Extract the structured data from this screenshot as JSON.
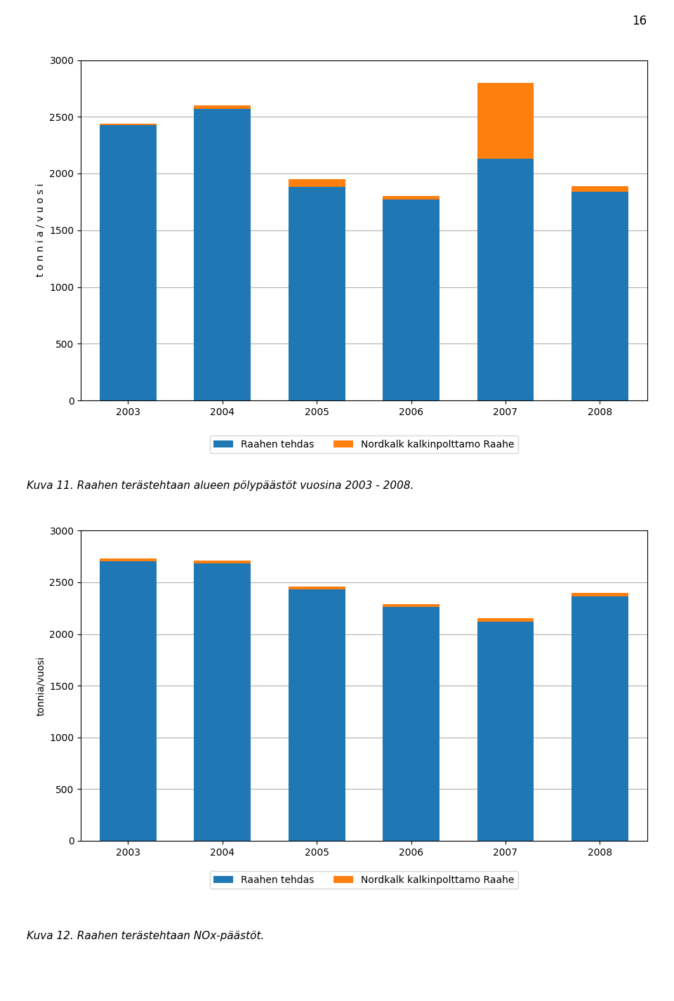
{
  "chart_data": [
    {
      "type": "bar",
      "stacked": true,
      "categories": [
        "2003",
        "2004",
        "2005",
        "2006",
        "2007",
        "2008"
      ],
      "series": [
        {
          "name": "Raahen tehdas",
          "values": [
            2430,
            2570,
            1880,
            1770,
            2130,
            1840
          ]
        },
        {
          "name": "Nordkalk kalkinpolttamo Raahe",
          "values": [
            10,
            30,
            70,
            30,
            670,
            50
          ]
        }
      ],
      "y_label": "t o n n i a / v u o s i",
      "ylim": [
        0,
        3000
      ],
      "yticks": [
        0,
        500,
        1000,
        1500,
        2000,
        2500,
        3000
      ],
      "grid": true,
      "legend": "lower center",
      "annotations": [
        "16"
      ],
      "caption": "Kuva 11. Raahen terästehtaan alueen pölypäästöt vuosina 2003 - 2008."
    },
    {
      "type": "bar",
      "stacked": true,
      "categories": [
        "2003",
        "2004",
        "2005",
        "2006",
        "2007",
        "2008"
      ],
      "series": [
        {
          "name": "Raahen tehdas",
          "values": [
            2700,
            2680,
            2430,
            2260,
            2120,
            2365
          ]
        },
        {
          "name": "Nordkalk kalkinpolttamo Raahe",
          "values": [
            30,
            30,
            30,
            30,
            30,
            30
          ]
        }
      ],
      "y_label": "tonnia/vuosi",
      "ylim": [
        0,
        3000
      ],
      "yticks": [
        0,
        500,
        1000,
        1500,
        2000,
        2500,
        3000
      ],
      "grid": true,
      "legend": "lower center",
      "caption": "Kuva 12. Raahen terästehtaan NOx-päästöt."
    }
  ]
}
